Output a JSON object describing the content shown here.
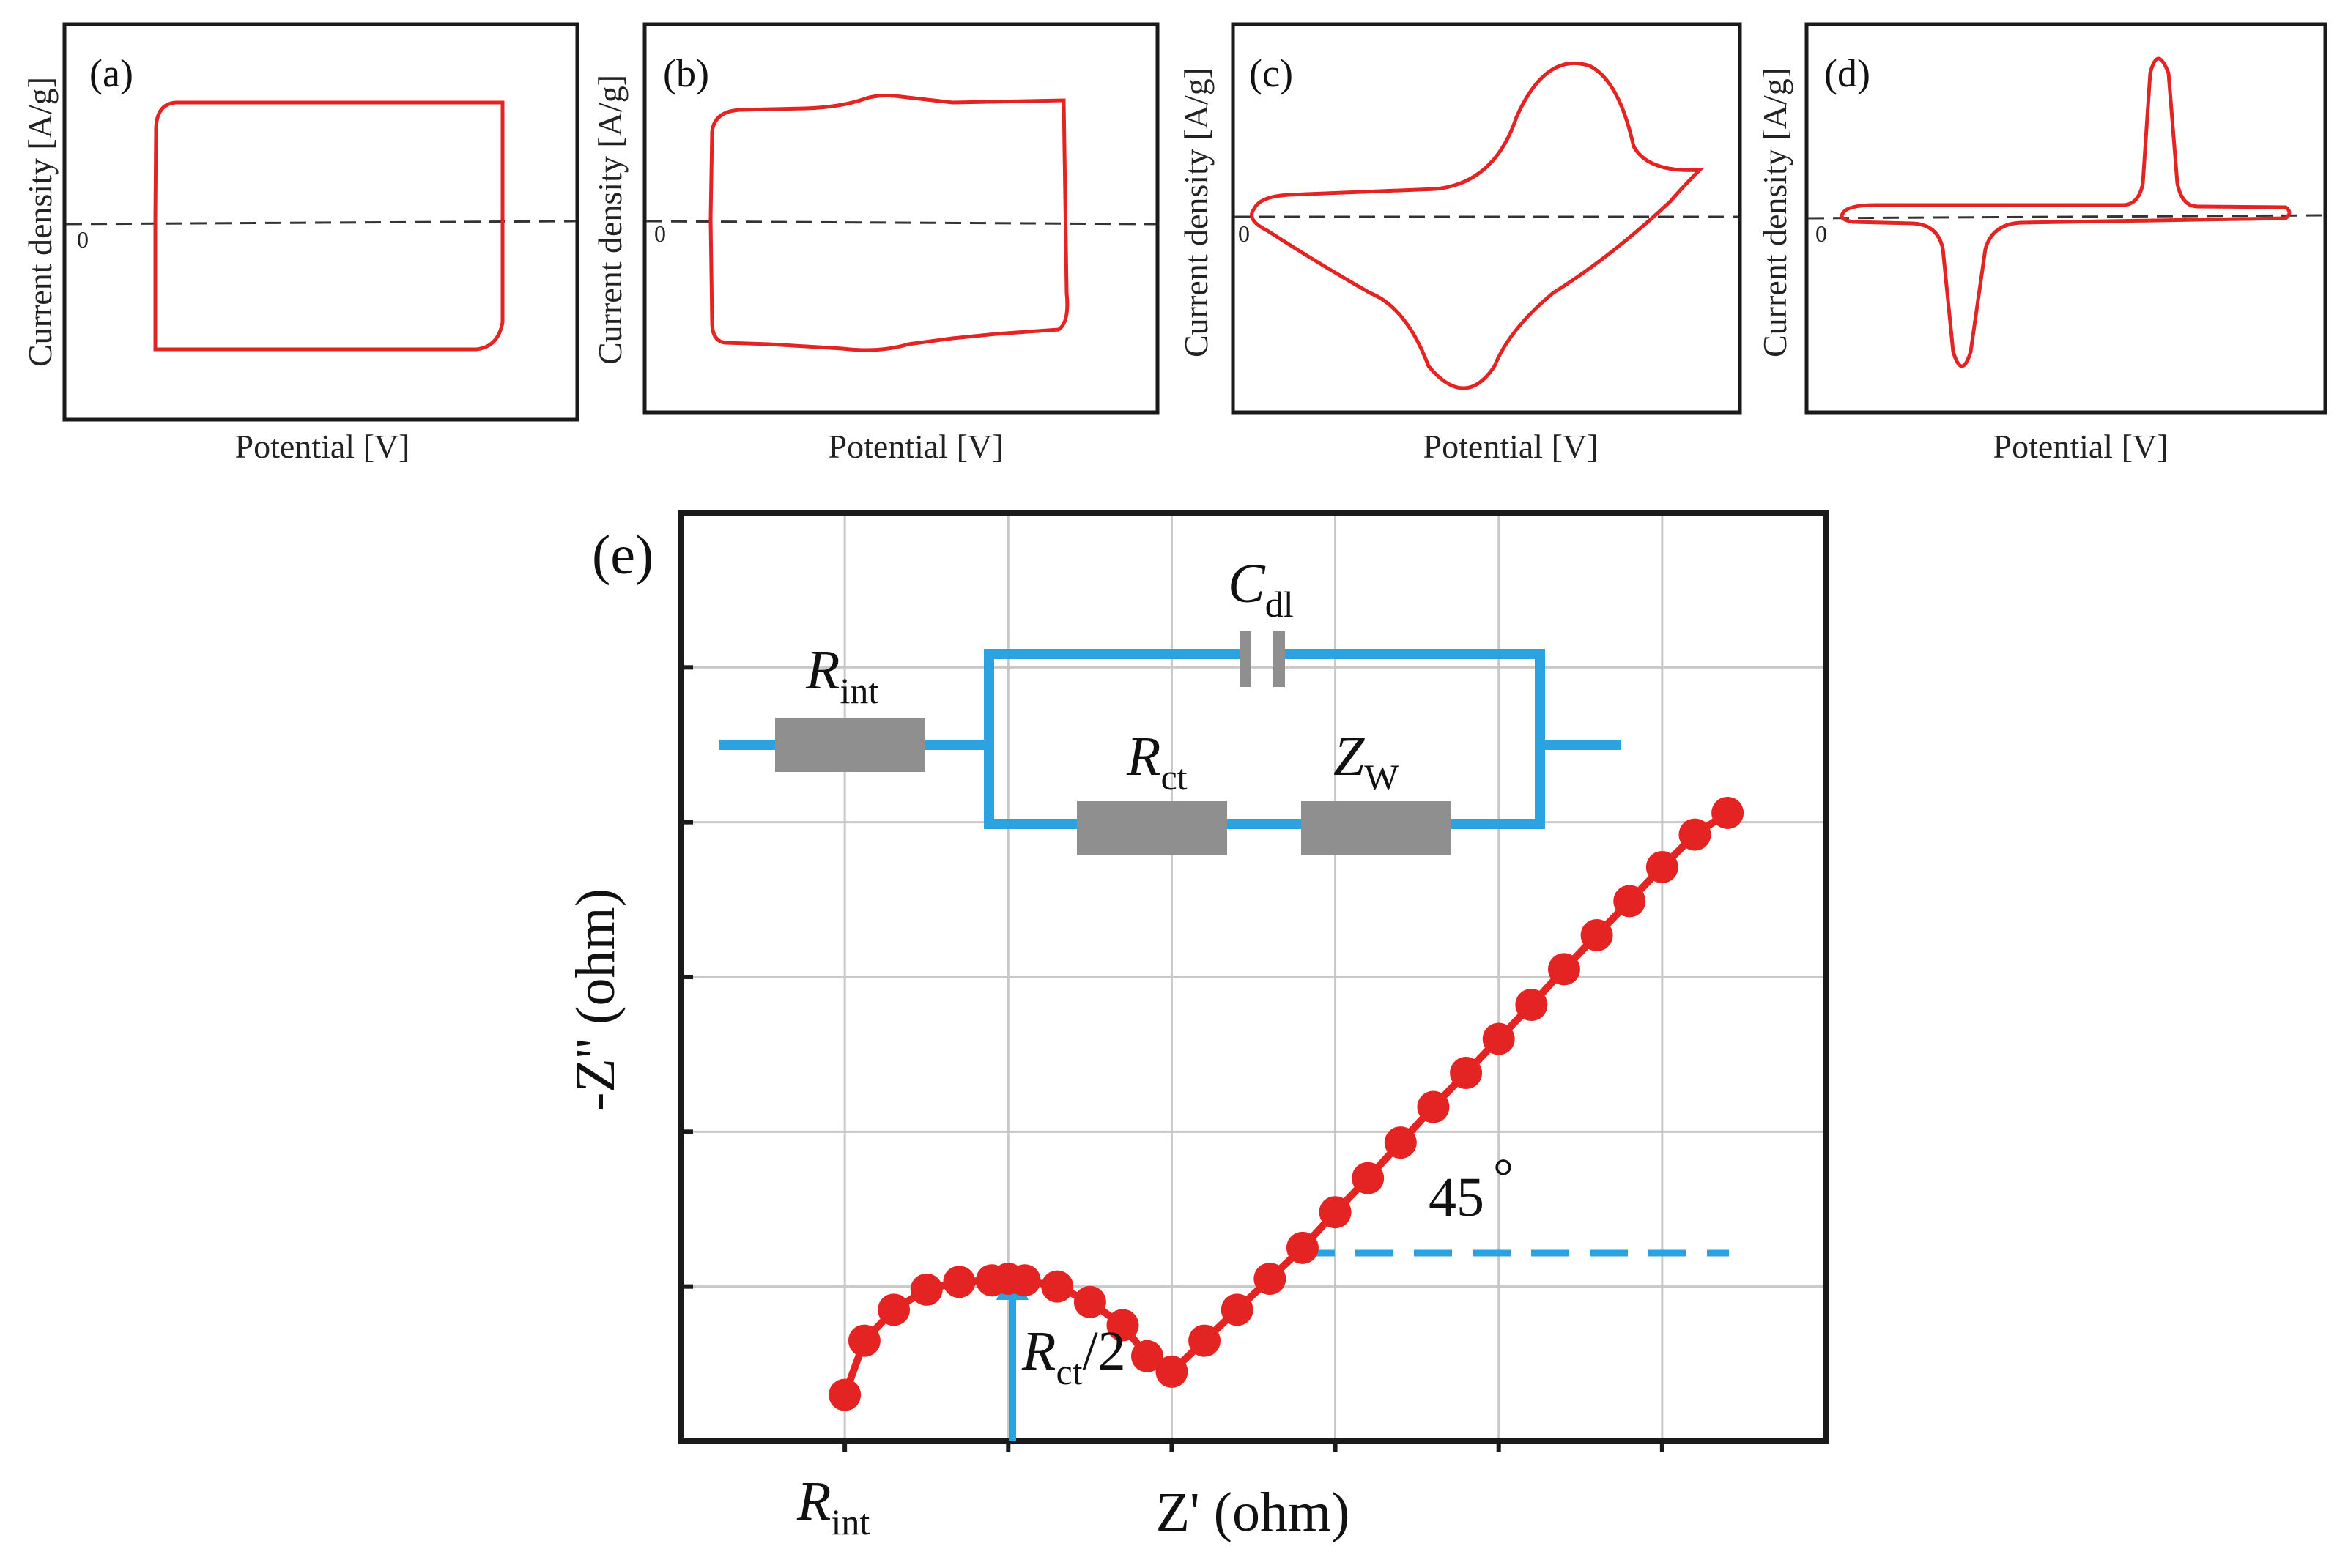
{
  "figure": {
    "colors": {
      "curve": "#e32422",
      "circuit": "#2aa3e0",
      "resistor": "#8f8f8f",
      "grid": "#c8c8c8",
      "axis": "#1a1a1a"
    },
    "cv_panels": [
      {
        "label": "(a)",
        "ylabel": "Current density [A/g]",
        "xlabel": "Potential [V]",
        "zero": "0",
        "shape": "rectangular (EDLC)"
      },
      {
        "label": "(b)",
        "ylabel": "Current density [A/g]",
        "xlabel": "Potential [V]",
        "zero": "0",
        "shape": "quasi-rectangular (pseudocapacitive)"
      },
      {
        "label": "(c)",
        "ylabel": "Current density [A/g]",
        "xlabel": "Potential [V]",
        "zero": "0",
        "shape": "broad redox peaks"
      },
      {
        "label": "(d)",
        "ylabel": "Current density [A/g]",
        "xlabel": "Potential [V]",
        "zero": "0",
        "shape": "sharp battery-type peaks"
      }
    ],
    "eis": {
      "label": "(e)",
      "xlabel": "Z' (ohm)",
      "ylabel": "-Z'' (ohm)",
      "angle_label": "45",
      "degree_symbol": "°",
      "rint_tick": {
        "main": "R",
        "sub": "int"
      },
      "rct_half": {
        "main": "R",
        "sub": "ct",
        "suffix": "/2"
      },
      "circuit": {
        "rint": {
          "main": "R",
          "sub": "int"
        },
        "cdl": {
          "main": "C",
          "sub": "dl"
        },
        "rct": {
          "main": "R",
          "sub": "ct"
        },
        "zw": {
          "main": "Z",
          "sub": "W"
        }
      }
    }
  },
  "chart_data": [
    {
      "type": "line",
      "title": "(a)",
      "xlabel": "Potential [V]",
      "ylabel": "Current density [A/g]",
      "x": [
        0,
        0.02,
        0.05,
        0.5,
        1.0,
        1.0,
        0.96,
        0.5,
        0.0,
        0.0
      ],
      "y": [
        0,
        0.9,
        1.0,
        1.0,
        1.0,
        -0.85,
        -1.0,
        -1.0,
        -1.0,
        0
      ],
      "ylim": [
        -1.4,
        1.6
      ],
      "xlim": [
        -0.1,
        1.15
      ]
    },
    {
      "type": "line",
      "title": "(b)",
      "xlabel": "Potential [V]",
      "ylabel": "Current density [A/g]",
      "x": [
        0.0,
        0.0,
        0.03,
        0.3,
        0.4,
        0.5,
        1.0,
        1.0,
        0.98,
        0.5,
        0.3,
        0.03,
        0.0
      ],
      "y": [
        0,
        0.95,
        1.0,
        1.0,
        1.07,
        1.02,
        1.05,
        -0.95,
        -1.02,
        -1.0,
        -1.1,
        -0.95,
        0
      ],
      "ylim": [
        -1.4,
        1.6
      ],
      "xlim": [
        -0.1,
        1.15
      ]
    },
    {
      "type": "line",
      "title": "(c)",
      "xlabel": "Potential [V]",
      "ylabel": "Current density [A/g]",
      "x": [
        0.0,
        0.1,
        0.35,
        0.45,
        0.52,
        0.58,
        0.63,
        0.74,
        0.88,
        0.75,
        0.65,
        0.52,
        0.43,
        0.32,
        0.22,
        0.08,
        0.0
      ],
      "y": [
        0.05,
        0.16,
        0.2,
        0.4,
        0.75,
        1.0,
        0.95,
        0.5,
        0.35,
        -0.5,
        -0.85,
        -1.15,
        -0.95,
        -0.65,
        -0.45,
        -0.15,
        0.05
      ],
      "ylim": [
        -1.4,
        1.6
      ],
      "xlim": [
        -0.05,
        1.0
      ]
    },
    {
      "type": "line",
      "title": "(d)",
      "xlabel": "Potential [V]",
      "ylabel": "Current density [A/g]",
      "x": [
        0.0,
        0.5,
        0.6,
        0.65,
        0.7,
        0.75,
        1.0,
        0.75,
        0.45,
        0.25,
        0.22,
        0.2,
        0.15,
        0.0
      ],
      "y": [
        0.0,
        0.03,
        0.05,
        1.1,
        0.05,
        0.03,
        0.0,
        -0.03,
        -0.03,
        -0.05,
        -1.1,
        -0.05,
        -0.03,
        0.0
      ],
      "ylim": [
        -1.2,
        1.3
      ],
      "xlim": [
        -0.05,
        1.05
      ]
    },
    {
      "type": "scatter",
      "title": "(e)",
      "xlabel": "Z' (ohm)",
      "ylabel": "-Z'' (ohm)",
      "x": [
        0.0,
        0.12,
        0.3,
        0.5,
        0.7,
        0.9,
        1.0,
        1.1,
        1.3,
        1.5,
        1.7,
        1.85,
        2.0,
        2.2,
        2.4,
        2.6,
        2.8,
        3.0,
        3.2,
        3.4,
        3.6,
        3.8,
        4.0,
        4.2,
        4.4,
        4.6,
        4.8,
        5.0,
        5.2,
        5.4
      ],
      "y": [
        0.3,
        0.65,
        0.85,
        0.98,
        1.03,
        1.04,
        1.05,
        1.04,
        1.0,
        0.9,
        0.75,
        0.55,
        0.45,
        0.65,
        0.85,
        1.05,
        1.25,
        1.48,
        1.7,
        1.93,
        2.16,
        2.38,
        2.6,
        2.82,
        3.05,
        3.27,
        3.49,
        3.71,
        3.92,
        4.06
      ],
      "xlim": [
        -1.0,
        6.0
      ],
      "ylim": [
        0,
        6.0
      ],
      "grid": true
    }
  ]
}
